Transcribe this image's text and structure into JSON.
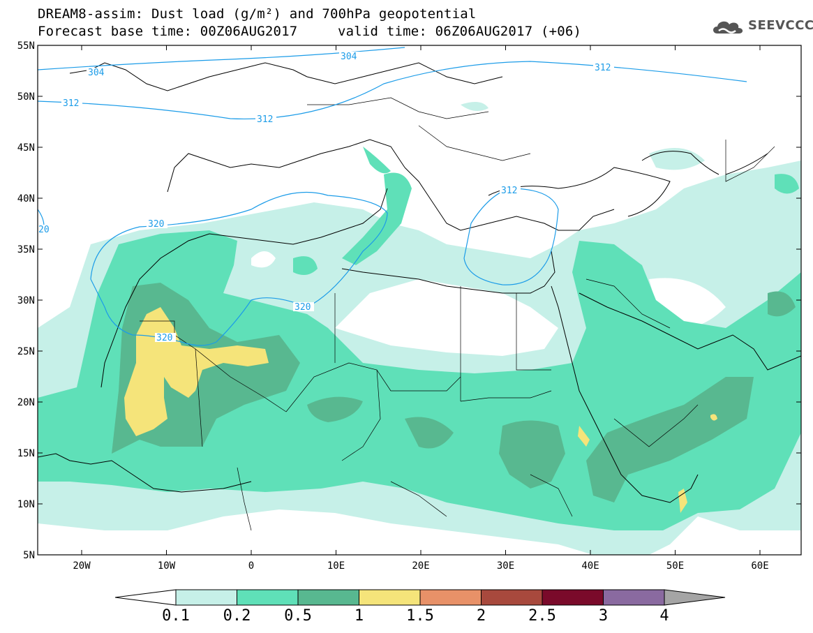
{
  "header": {
    "title_line1": "DREAM8-assim: Dust load (g/m²) and 700hPa geopotential",
    "title_line2_base": "Forecast base time: 00Z06AUG2017",
    "title_line2_valid": "valid time: 06Z06AUG2017 (+06)"
  },
  "logo": {
    "text": "SEEVCCC",
    "icon": "cloud-icon"
  },
  "map": {
    "lat_labels": [
      "55N",
      "50N",
      "45N",
      "40N",
      "35N",
      "30N",
      "25N",
      "20N",
      "15N",
      "10N",
      "5N"
    ],
    "lon_labels": [
      "20W",
      "10W",
      "0",
      "10E",
      "20E",
      "30E",
      "40E",
      "50E",
      "60E"
    ],
    "contour_labels": [
      "304",
      "304",
      "312",
      "312",
      "312",
      "312",
      "320",
      "320",
      "320",
      "20"
    ],
    "colors": {
      "coast": "#000000",
      "contour": "#1c9ce8"
    }
  },
  "colorbar": {
    "labels": [
      "0.1",
      "0.2",
      "0.5",
      "1",
      "1.5",
      "2",
      "2.5",
      "3",
      "4"
    ],
    "colors": [
      "#ffffff",
      "#c6f0e8",
      "#5fe0b8",
      "#58b890",
      "#f5e47a",
      "#e89168",
      "#a8493d",
      "#7a0a2a",
      "#8a6aa0",
      "#a5a5a5"
    ]
  }
}
